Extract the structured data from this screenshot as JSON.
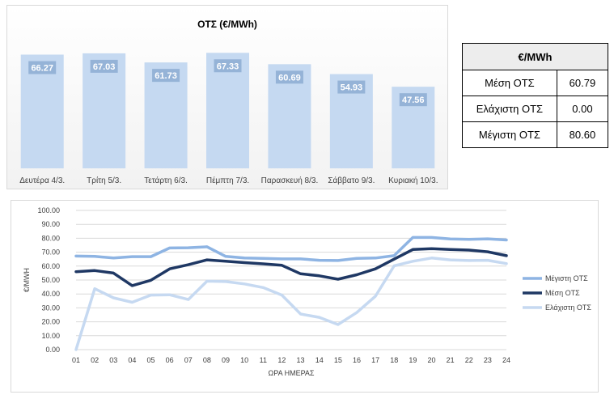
{
  "chart_data": [
    {
      "type": "bar",
      "title": "ΟΤΣ (€/MWh)",
      "categories": [
        "Δευτέρα 4/3.",
        "Τρίτη 5/3.",
        "Τετάρτη 6/3.",
        "Πέμπτη 7/3.",
        "Παρασκευή 8/3.",
        "Σάββατο 9/3.",
        "Κυριακή 10/3."
      ],
      "values": [
        66.27,
        67.03,
        61.73,
        67.33,
        60.69,
        54.93,
        47.56
      ],
      "data_labels": [
        "66.27",
        "67.03",
        "61.73",
        "67.33",
        "60.69",
        "54.93",
        "47.56"
      ],
      "ylim": [
        0,
        75
      ],
      "bar_color": "#c5d9f1",
      "label_bg": "#95b3d7",
      "grid": false,
      "legend": "none"
    },
    {
      "type": "line",
      "title": "",
      "xlabel": "ΩΡΑ ΗΜΕΡΑΣ",
      "ylabel": "€/MWH",
      "x": [
        "01",
        "02",
        "03",
        "04",
        "05",
        "06",
        "07",
        "08",
        "09",
        "10",
        "11",
        "12",
        "13",
        "14",
        "15",
        "16",
        "17",
        "18",
        "19",
        "20",
        "21",
        "22",
        "23",
        "24"
      ],
      "ylim": [
        0,
        100
      ],
      "yticks": [
        "0.00",
        "10.00",
        "20.00",
        "30.00",
        "40.00",
        "50.00",
        "60.00",
        "70.00",
        "80.00",
        "90.00",
        "100.00"
      ],
      "grid": true,
      "legend": "right",
      "series": [
        {
          "name": "Μέγιστη ΟΤΣ",
          "color": "#8eb4e3",
          "values": [
            67.2,
            67.0,
            65.8,
            66.8,
            66.8,
            73.0,
            73.2,
            73.9,
            67.0,
            65.8,
            65.5,
            65.2,
            65.2,
            64.2,
            64.0,
            65.5,
            65.8,
            67.5,
            80.6,
            80.6,
            79.5,
            79.2,
            79.6,
            78.8
          ]
        },
        {
          "name": "Μέση ΟΤΣ",
          "color": "#1f3864",
          "values": [
            56.0,
            56.8,
            55.0,
            46.0,
            49.8,
            58.0,
            61.0,
            64.5,
            63.5,
            62.5,
            61.6,
            60.6,
            54.5,
            53.0,
            50.6,
            53.8,
            58.0,
            65.0,
            71.9,
            72.5,
            71.9,
            71.5,
            70.3,
            67.5
          ]
        },
        {
          "name": "Ελάχιστη ΟΤΣ",
          "color": "#c6d9f1",
          "values": [
            0.0,
            43.8,
            37.2,
            34.0,
            39.2,
            39.4,
            36.0,
            49.2,
            48.9,
            47.2,
            44.6,
            39.2,
            25.6,
            23.2,
            18.0,
            26.6,
            38.4,
            60.2,
            63.5,
            65.8,
            64.5,
            64.0,
            64.2,
            61.8
          ]
        }
      ]
    }
  ],
  "summary_table": {
    "header": "€/MWh",
    "rows": [
      {
        "label": "Μέση ΟΤΣ",
        "value": "60.79"
      },
      {
        "label": "Ελάχιστη ΟΤΣ",
        "value": "0.00"
      },
      {
        "label": "Μέγιστη ΟΤΣ",
        "value": "80.60"
      }
    ]
  }
}
